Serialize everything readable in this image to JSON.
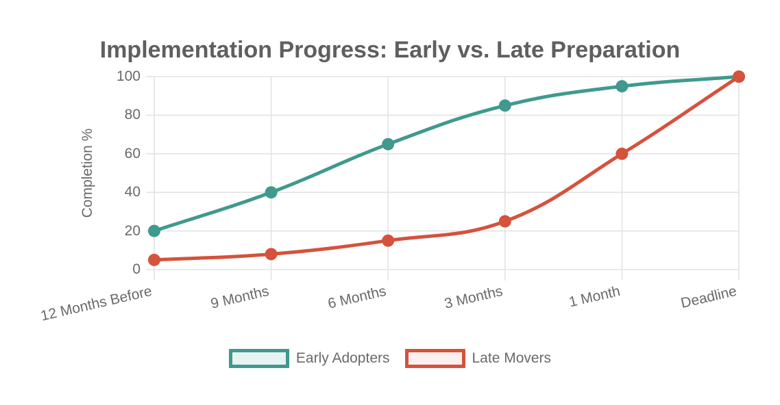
{
  "chart_data": {
    "type": "line",
    "title": "Implementation Progress: Early vs. Late Preparation",
    "xlabel": "",
    "ylabel": "Completion %",
    "categories": [
      "12 Months Before",
      "9 Months",
      "6 Months",
      "3 Months",
      "1 Month",
      "Deadline"
    ],
    "series": [
      {
        "name": "Early Adopters",
        "values": [
          20,
          40,
          65,
          85,
          95,
          100
        ],
        "color": "#40998f",
        "fill_tint": "#e8f3f1"
      },
      {
        "name": "Late Movers",
        "values": [
          5,
          8,
          15,
          25,
          60,
          100
        ],
        "color": "#d5523c",
        "fill_tint": "#fcf0ee"
      }
    ],
    "ylim": [
      0,
      100
    ],
    "y_tick_step": 20,
    "y_tick_labels": [
      "0",
      "20",
      "40",
      "60",
      "80",
      "100"
    ],
    "grid": true,
    "legend_position": "bottom",
    "line_tension": 0.4,
    "colors": {
      "grid": "#e3e3e3",
      "tick_text": "#696969",
      "title_text": "#5f5f5f",
      "background": "#ffffff"
    }
  }
}
